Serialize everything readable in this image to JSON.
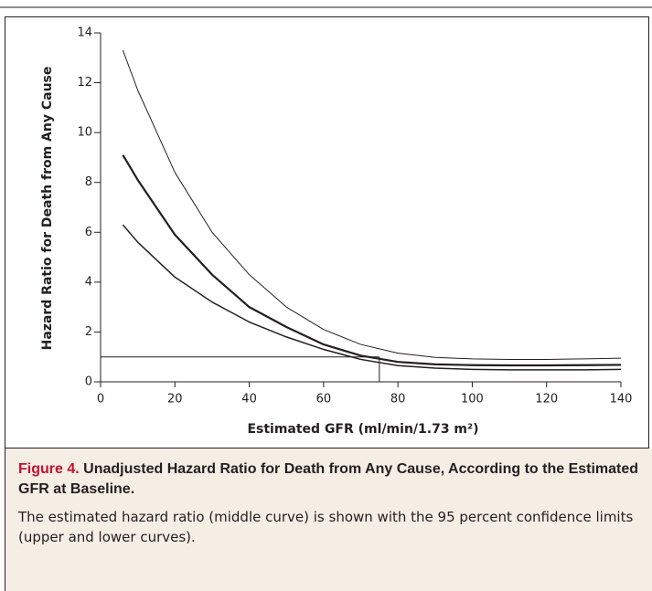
{
  "chart_data": {
    "type": "line",
    "xlabel": "Estimated GFR (ml/min/1.73 m²)",
    "ylabel": "Hazard Ratio for Death from Any Cause",
    "x": [
      6,
      10,
      20,
      30,
      40,
      50,
      60,
      70,
      80,
      90,
      100,
      110,
      120,
      130,
      140
    ],
    "series": [
      {
        "color": "#231f20",
        "width": 1,
        "values": [
          13.3,
          11.7,
          8.4,
          6.0,
          4.3,
          3.0,
          2.1,
          1.5,
          1.15,
          0.98,
          0.92,
          0.9,
          0.9,
          0.92,
          0.95
        ]
      },
      {
        "color": "#231f20",
        "width": 2.2,
        "values": [
          9.1,
          8.1,
          5.9,
          4.3,
          3.0,
          2.2,
          1.5,
          1.05,
          0.8,
          0.7,
          0.67,
          0.66,
          0.66,
          0.67,
          0.68
        ]
      },
      {
        "color": "#231f20",
        "width": 1.5,
        "values": [
          6.3,
          5.6,
          4.2,
          3.2,
          2.4,
          1.8,
          1.3,
          0.9,
          0.65,
          0.55,
          0.5,
          0.48,
          0.48,
          0.48,
          0.5
        ]
      }
    ],
    "reference": {
      "x": 75,
      "y": 1
    },
    "xlim": [
      0,
      140
    ],
    "xticks": [
      0,
      20,
      40,
      60,
      80,
      100,
      120,
      140
    ],
    "ylim": [
      0,
      14
    ],
    "yticks": [
      0,
      2,
      4,
      6,
      8,
      10,
      12,
      14
    ],
    "grid": false
  },
  "caption": {
    "label": "Figure 4.",
    "title": "Unadjusted Hazard Ratio for Death from Any Cause, According to the Estimated GFR at Baseline.",
    "text": "The estimated hazard ratio (middle curve) is shown with the 95 percent confidence limits (upper and lower curves)."
  }
}
